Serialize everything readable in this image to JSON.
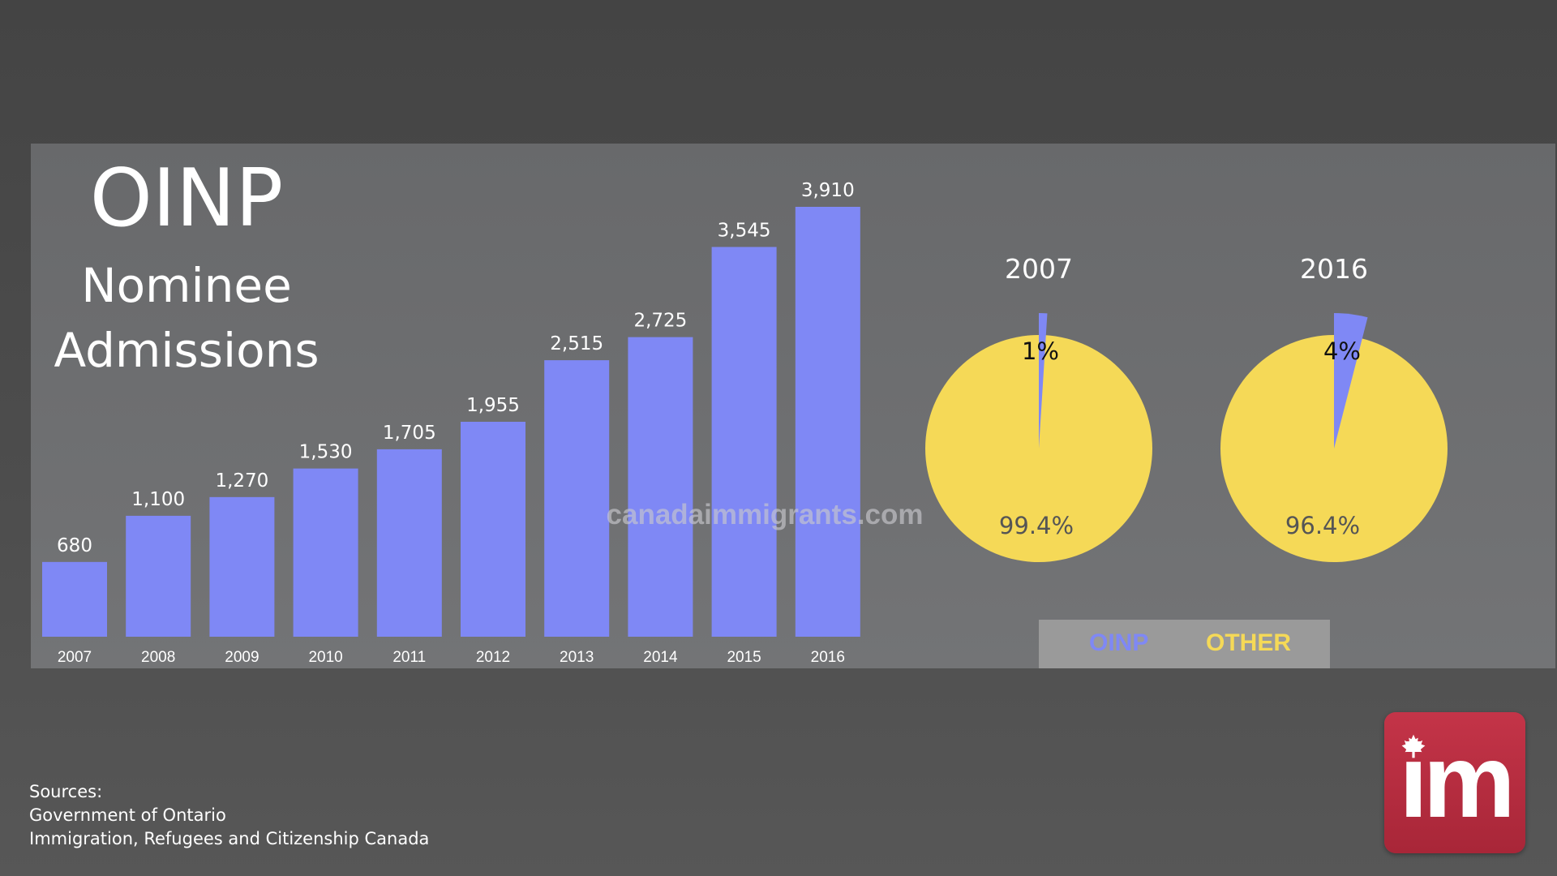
{
  "header": {
    "title": "OINP",
    "subtitle_line1": "Nominee",
    "subtitle_line2": "Admissions"
  },
  "watermark": "canadaimmigrants.com",
  "colors": {
    "oinp": "#7f88f5",
    "other": "#f5d957",
    "panel": "#6e6f71",
    "background": "#4a4a4a"
  },
  "chart_data": [
    {
      "type": "bar",
      "categories": [
        "2007",
        "2008",
        "2009",
        "2010",
        "2011",
        "2012",
        "2013",
        "2014",
        "2015",
        "2016"
      ],
      "values": [
        680,
        1100,
        1270,
        1530,
        1705,
        1955,
        2515,
        2725,
        3545,
        3910
      ],
      "data_labels": [
        "680",
        "1,100",
        "1,270",
        "1,530",
        "1,705",
        "1,955",
        "2,515",
        "2,725",
        "3,545",
        "3,910"
      ],
      "title": "",
      "xlabel": "",
      "ylabel": "",
      "ylim": [
        0,
        3910
      ],
      "grid": false
    },
    {
      "type": "pie",
      "title": "2007",
      "slices": [
        {
          "name": "OINP",
          "value": 1,
          "label": "1%"
        },
        {
          "name": "OTHER",
          "value": 99.4,
          "label": "99.4%"
        }
      ]
    },
    {
      "type": "pie",
      "title": "2016",
      "slices": [
        {
          "name": "OINP",
          "value": 4,
          "label": "4%"
        },
        {
          "name": "OTHER",
          "value": 96.4,
          "label": "96.4%"
        }
      ]
    }
  ],
  "legend": {
    "items": [
      {
        "label": "OINP",
        "color": "#7f88f5"
      },
      {
        "label": "OTHER",
        "color": "#f5d957"
      }
    ]
  },
  "sources": {
    "heading": "Sources:",
    "line1": "Government of Ontario",
    "line2": "Immigration, Refugees and Citizenship Canada"
  },
  "logo": {
    "text": "im",
    "icon": "maple-leaf-icon"
  }
}
